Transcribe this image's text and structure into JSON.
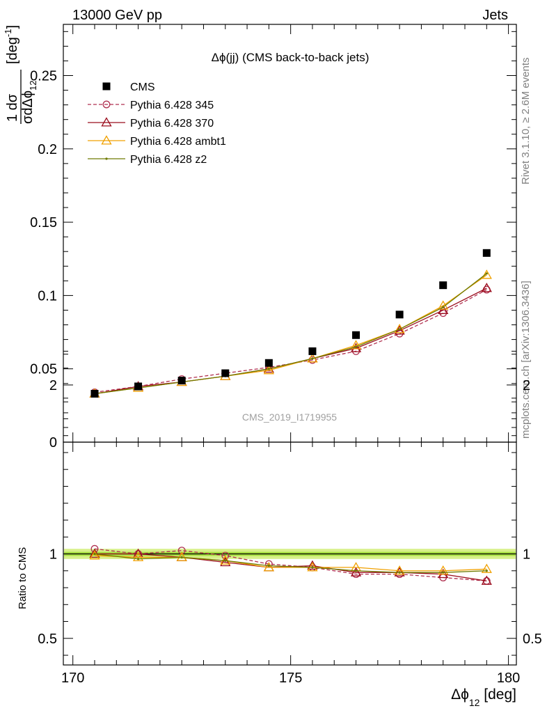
{
  "header": {
    "left": "13000 GeV pp",
    "right": "Jets"
  },
  "side_labels": {
    "rivet": "Rivet 3.1.10, ≥ 2.6M events",
    "mcplots": "mcplots.cern.ch [arXiv:1306.3436]"
  },
  "chart_data": [
    {
      "type": "scatter",
      "title": "Δϕ(jj) (CMS back-to-back jets)",
      "watermark": "CMS_2019_I1719955",
      "ylabel": "1/σ dσ/dΔϕ_12 [deg⁻¹]",
      "xlim": [
        170,
        180
      ],
      "ylim": [
        0,
        0.285
      ],
      "yticks": [
        {
          "v": 0,
          "label": "0"
        },
        {
          "v": 0.05,
          "label": "0.05"
        },
        {
          "v": 0.1,
          "label": "0.1"
        },
        {
          "v": 0.15,
          "label": "0.15"
        },
        {
          "v": 0.2,
          "label": "0.2"
        },
        {
          "v": 0.25,
          "label": "0.25"
        }
      ],
      "x": [
        170.5,
        171.5,
        172.5,
        173.5,
        174.5,
        175.5,
        176.5,
        177.5,
        178.5,
        179.5
      ],
      "legend_position": "top-left",
      "series": [
        {
          "name": "CMS",
          "color": "#000000",
          "marker": "square",
          "line": "none",
          "values": [
            0.033,
            0.038,
            0.042,
            0.047,
            0.054,
            0.062,
            0.073,
            0.087,
            0.107,
            0.129
          ]
        },
        {
          "name": "Pythia 6.428 345",
          "color": "#b03050",
          "marker": "circle",
          "line": "dashed",
          "values": [
            0.034,
            0.038,
            0.043,
            0.047,
            0.051,
            0.056,
            0.062,
            0.074,
            0.088,
            0.104
          ]
        },
        {
          "name": "Pythia 6.428 370",
          "color": "#9b0e1e",
          "marker": "triangle",
          "line": "solid",
          "values": [
            0.033,
            0.038,
            0.041,
            0.045,
            0.05,
            0.057,
            0.064,
            0.076,
            0.09,
            0.105
          ]
        },
        {
          "name": "Pythia 6.428 ambt1",
          "color": "#f0a000",
          "marker": "triangle",
          "line": "solid",
          "values": [
            0.033,
            0.037,
            0.041,
            0.045,
            0.049,
            0.057,
            0.066,
            0.077,
            0.093,
            0.114
          ]
        },
        {
          "name": "Pythia 6.428 z2",
          "color": "#6e7a00",
          "marker": "dot",
          "line": "solid",
          "values": [
            0.033,
            0.037,
            0.041,
            0.045,
            0.05,
            0.057,
            0.065,
            0.077,
            0.092,
            0.115
          ]
        }
      ]
    },
    {
      "type": "line",
      "ylabel": "Ratio to CMS",
      "xlabel": "Δϕ_12 [deg]",
      "xlim": [
        170,
        180
      ],
      "ylim": [
        0.35,
        2.25
      ],
      "xticks": [
        {
          "v": 170,
          "label": "170"
        },
        {
          "v": 175,
          "label": "175"
        },
        {
          "v": 180,
          "label": "180"
        }
      ],
      "yticks": [
        {
          "v": 0.5,
          "label": "0.5"
        },
        {
          "v": 1,
          "label": "1"
        },
        {
          "v": 2,
          "label": "2"
        }
      ],
      "x": [
        170.5,
        171.5,
        172.5,
        173.5,
        174.5,
        175.5,
        176.5,
        177.5,
        178.5,
        179.5
      ],
      "band": {
        "color": "#d8f08a",
        "line_color": "#000000",
        "ylow": 0.97,
        "yhigh": 1.03
      },
      "series": [
        {
          "name": "Pythia 6.428 345",
          "color": "#b03050",
          "marker": "circle",
          "line": "dashed",
          "values": [
            1.03,
            1.0,
            1.02,
            0.99,
            0.94,
            0.92,
            0.88,
            0.88,
            0.86,
            0.84
          ]
        },
        {
          "name": "Pythia 6.428 370",
          "color": "#9b0e1e",
          "marker": "triangle",
          "line": "solid",
          "values": [
            1.0,
            1.0,
            0.98,
            0.95,
            0.92,
            0.93,
            0.89,
            0.89,
            0.88,
            0.84
          ]
        },
        {
          "name": "Pythia 6.428 ambt1",
          "color": "#f0a000",
          "marker": "triangle",
          "line": "solid",
          "values": [
            0.99,
            0.98,
            0.98,
            0.96,
            0.92,
            0.92,
            0.92,
            0.9,
            0.9,
            0.91
          ]
        },
        {
          "name": "Pythia 6.428 z2",
          "color": "#6e7a00",
          "marker": "dot",
          "line": "solid",
          "values": [
            1.0,
            0.97,
            0.98,
            0.96,
            0.93,
            0.92,
            0.9,
            0.89,
            0.89,
            0.9
          ]
        }
      ]
    }
  ]
}
